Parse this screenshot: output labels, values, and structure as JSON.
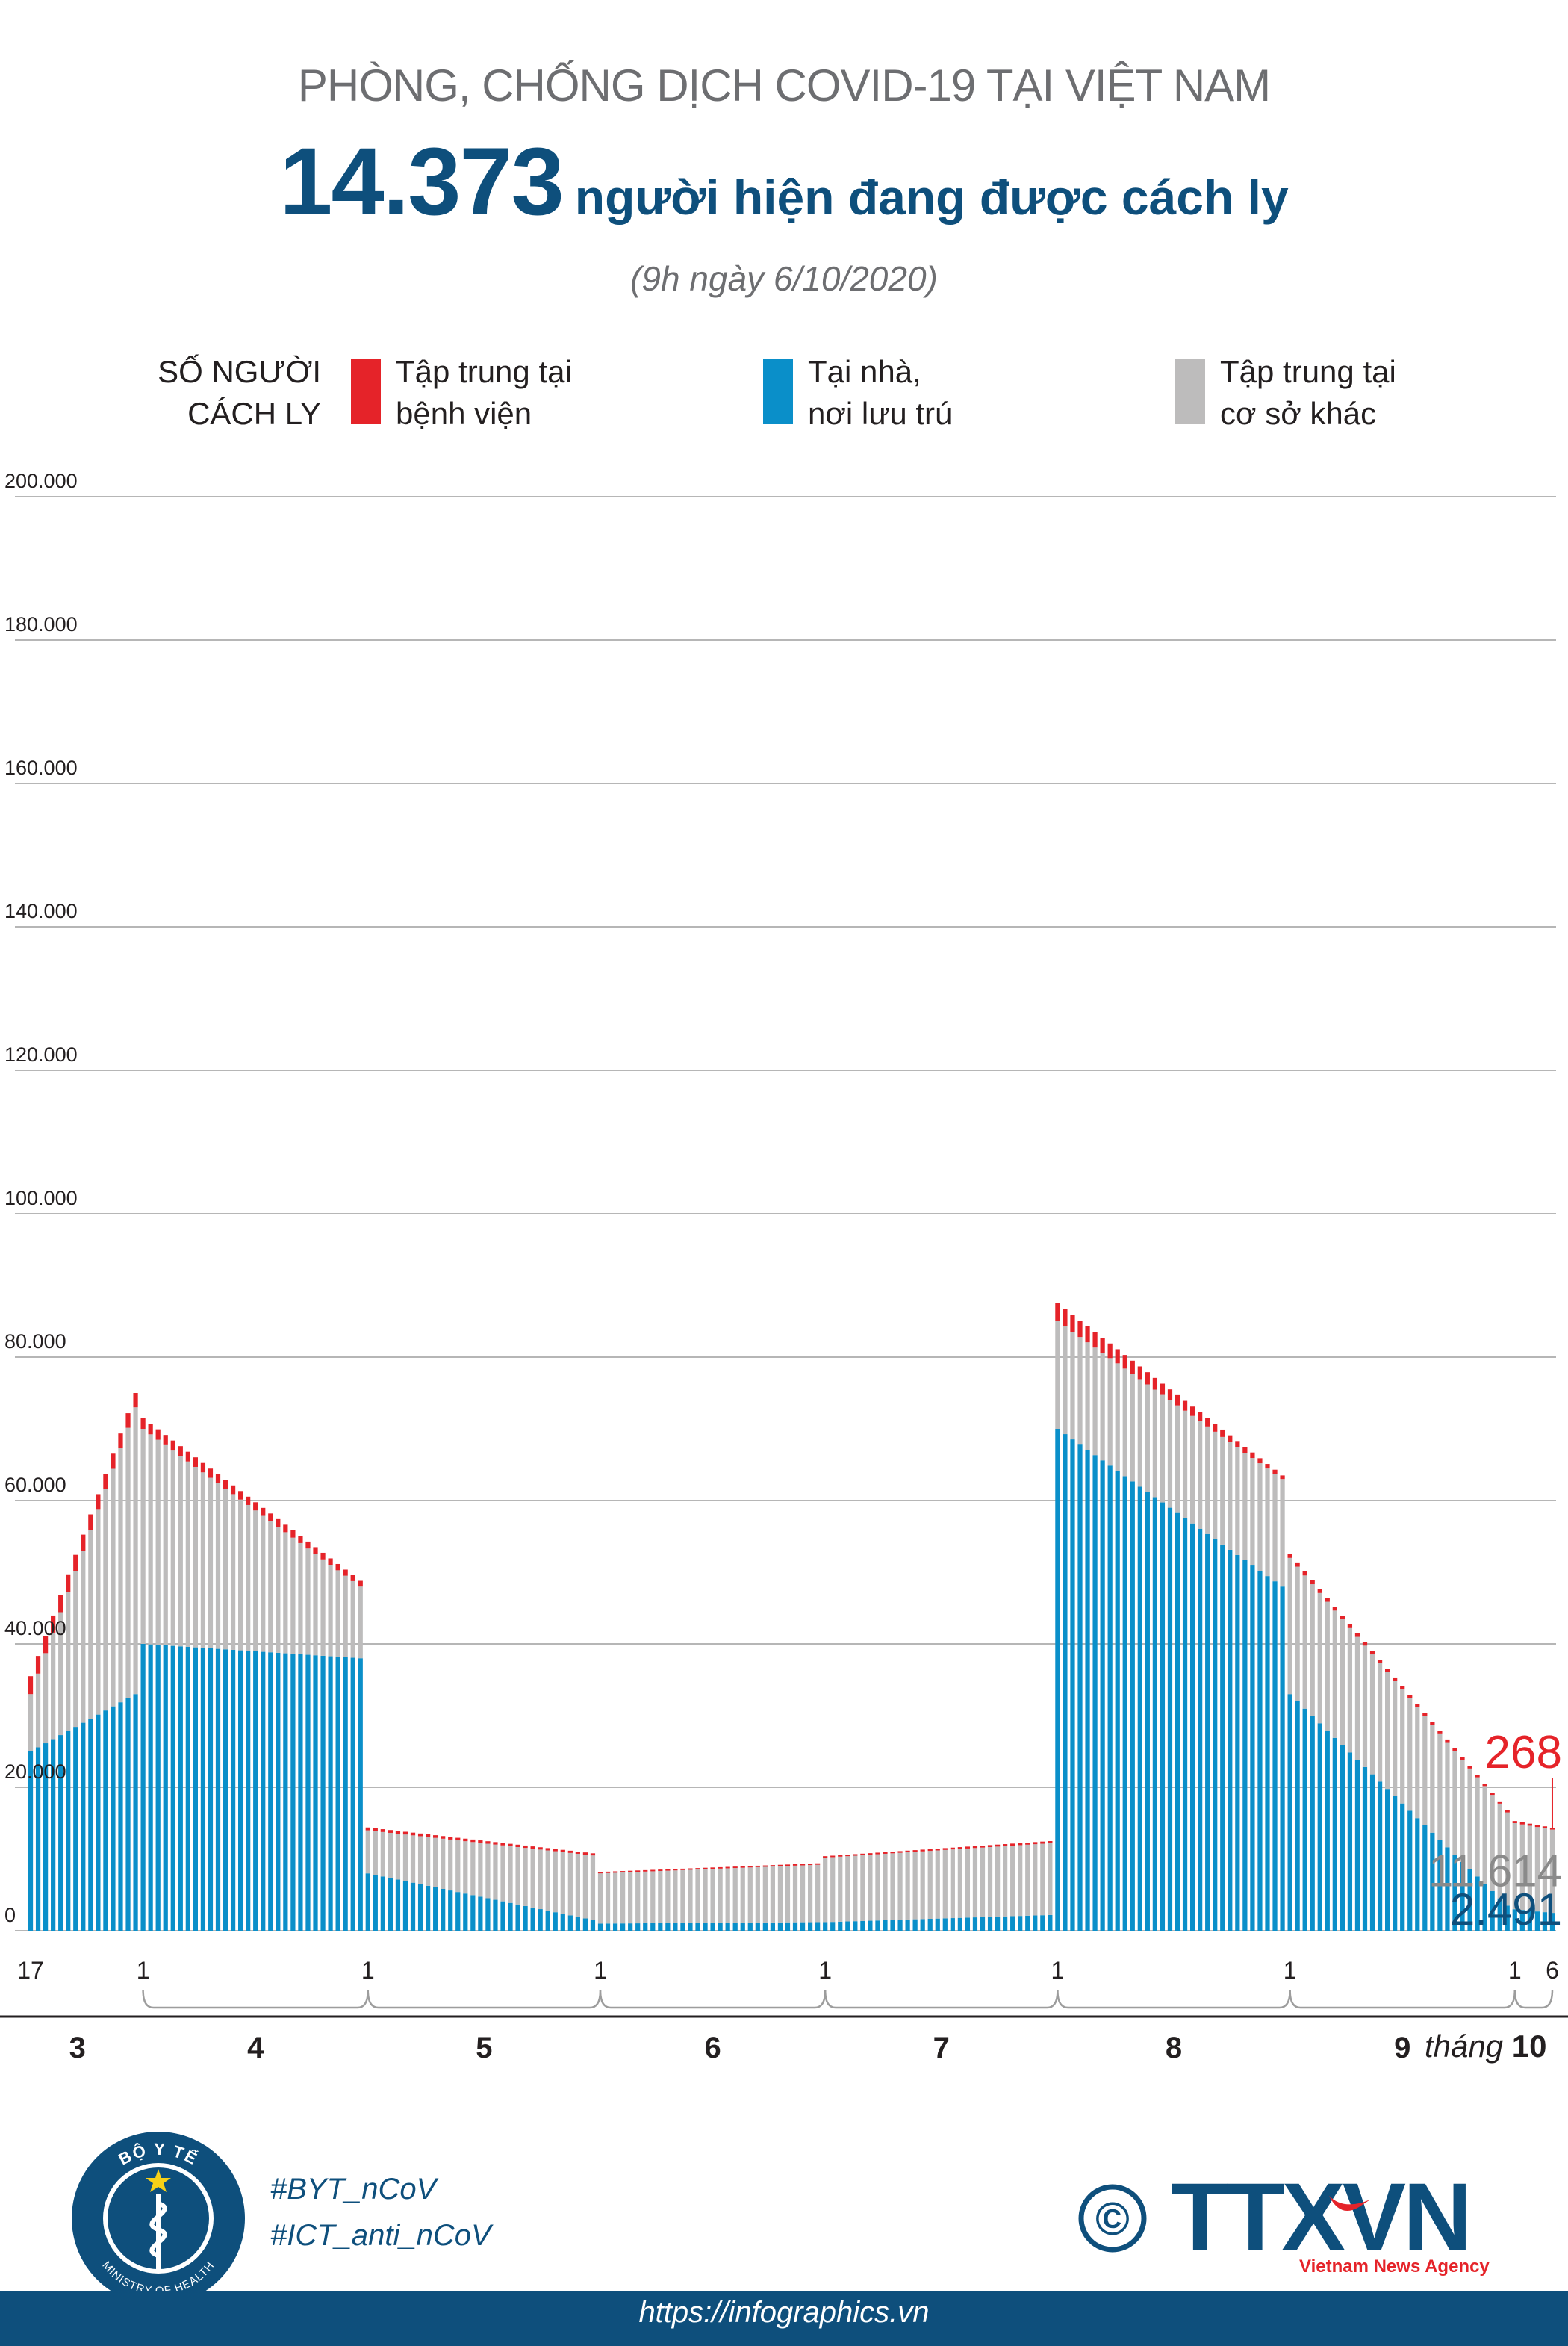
{
  "header": {
    "supertitle": "PHÒNG, CHỐNG DỊCH COVID-19 TẠI VIỆT NAM",
    "headline_number": "14.373",
    "headline_text": "người hiện đang được cách ly",
    "date": "(9h ngày 6/10/2020)"
  },
  "legend": {
    "title_line1": "SỐ NGƯỜI",
    "title_line2": "CÁCH LY",
    "items": [
      {
        "line1": "Tập trung tại",
        "line2": "bệnh viện",
        "color": "#e52329"
      },
      {
        "line1": "Tại nhà,",
        "line2": "nơi lưu trú",
        "color": "#0a8fc9"
      },
      {
        "line1": "Tập trung tại",
        "line2": "cơ sở khác",
        "color": "#bdbcbc"
      }
    ]
  },
  "chart_data": {
    "type": "bar",
    "stacked": true,
    "ylim": [
      0,
      200000
    ],
    "yticks": [
      "0",
      "20.000",
      "40.000",
      "60.000",
      "80.000",
      "100.000",
      "120.000",
      "140.000",
      "160.000",
      "180.000",
      "200.000"
    ],
    "grid": true,
    "x_day_labels": [
      "17",
      "1",
      "1",
      "1",
      "1",
      "1",
      "1",
      "1",
      "6"
    ],
    "x_month_labels": [
      "3",
      "4",
      "5",
      "6",
      "7",
      "8",
      "9"
    ],
    "x_last_month_prefix": "tháng",
    "x_last_month": "10",
    "series": [
      {
        "name": "Tập trung tại bệnh viện",
        "color": "#e52329",
        "segments": [
          {
            "days": 15,
            "from": 2500,
            "to": 2000
          },
          {
            "days": 30,
            "from": 1500,
            "to": 800
          },
          {
            "days": 31,
            "from": 400,
            "to": 300
          },
          {
            "days": 30,
            "from": 200,
            "to": 200
          },
          {
            "days": 31,
            "from": 200,
            "to": 300
          },
          {
            "days": 31,
            "from": 2500,
            "to": 500
          },
          {
            "days": 30,
            "from": 600,
            "to": 300
          },
          {
            "days": 6,
            "from": 300,
            "to": 268
          }
        ]
      },
      {
        "name": "Tại nhà, nơi lưu trú",
        "color": "#0a8fc9",
        "segments": [
          {
            "days": 15,
            "from": 25000,
            "to": 33000
          },
          {
            "days": 30,
            "from": 40000,
            "to": 38000
          },
          {
            "days": 31,
            "from": 8000,
            "to": 1500
          },
          {
            "days": 30,
            "from": 1000,
            "to": 1200
          },
          {
            "days": 31,
            "from": 1200,
            "to": 2200
          },
          {
            "days": 31,
            "from": 70000,
            "to": 48000
          },
          {
            "days": 30,
            "from": 33000,
            "to": 3500
          },
          {
            "days": 6,
            "from": 3000,
            "to": 2491
          }
        ]
      },
      {
        "name": "Tập trung tại cơ sở khác",
        "color": "#bdbcbc",
        "segments": [
          {
            "days": 15,
            "from": 8000,
            "to": 40000
          },
          {
            "days": 30,
            "from": 30000,
            "to": 10000
          },
          {
            "days": 31,
            "from": 6000,
            "to": 9000
          },
          {
            "days": 30,
            "from": 7000,
            "to": 8000
          },
          {
            "days": 31,
            "from": 9000,
            "to": 10000
          },
          {
            "days": 31,
            "from": 15000,
            "to": 15000
          },
          {
            "days": 30,
            "from": 19000,
            "to": 13000
          },
          {
            "days": 6,
            "from": 12000,
            "to": 11614
          }
        ]
      }
    ],
    "annotations": [
      {
        "text": "268",
        "color": "#e52329"
      },
      {
        "text": "11.614",
        "color": "#8a8a8a"
      },
      {
        "text": "2.491",
        "color": "#0e4f7c"
      }
    ]
  },
  "logos": {
    "moh_top": "BỘ Y TẾ",
    "moh_bottom": "MINISTRY OF HEALTH",
    "ttxvn": "TTXVN",
    "ttxvn_sub": "Vietnam News Agency",
    "copyright": "©"
  },
  "hashtags": [
    "#BYT_nCoV",
    "#ICT_anti_nCoV"
  ],
  "footer": {
    "url": "https://infographics.vn"
  }
}
